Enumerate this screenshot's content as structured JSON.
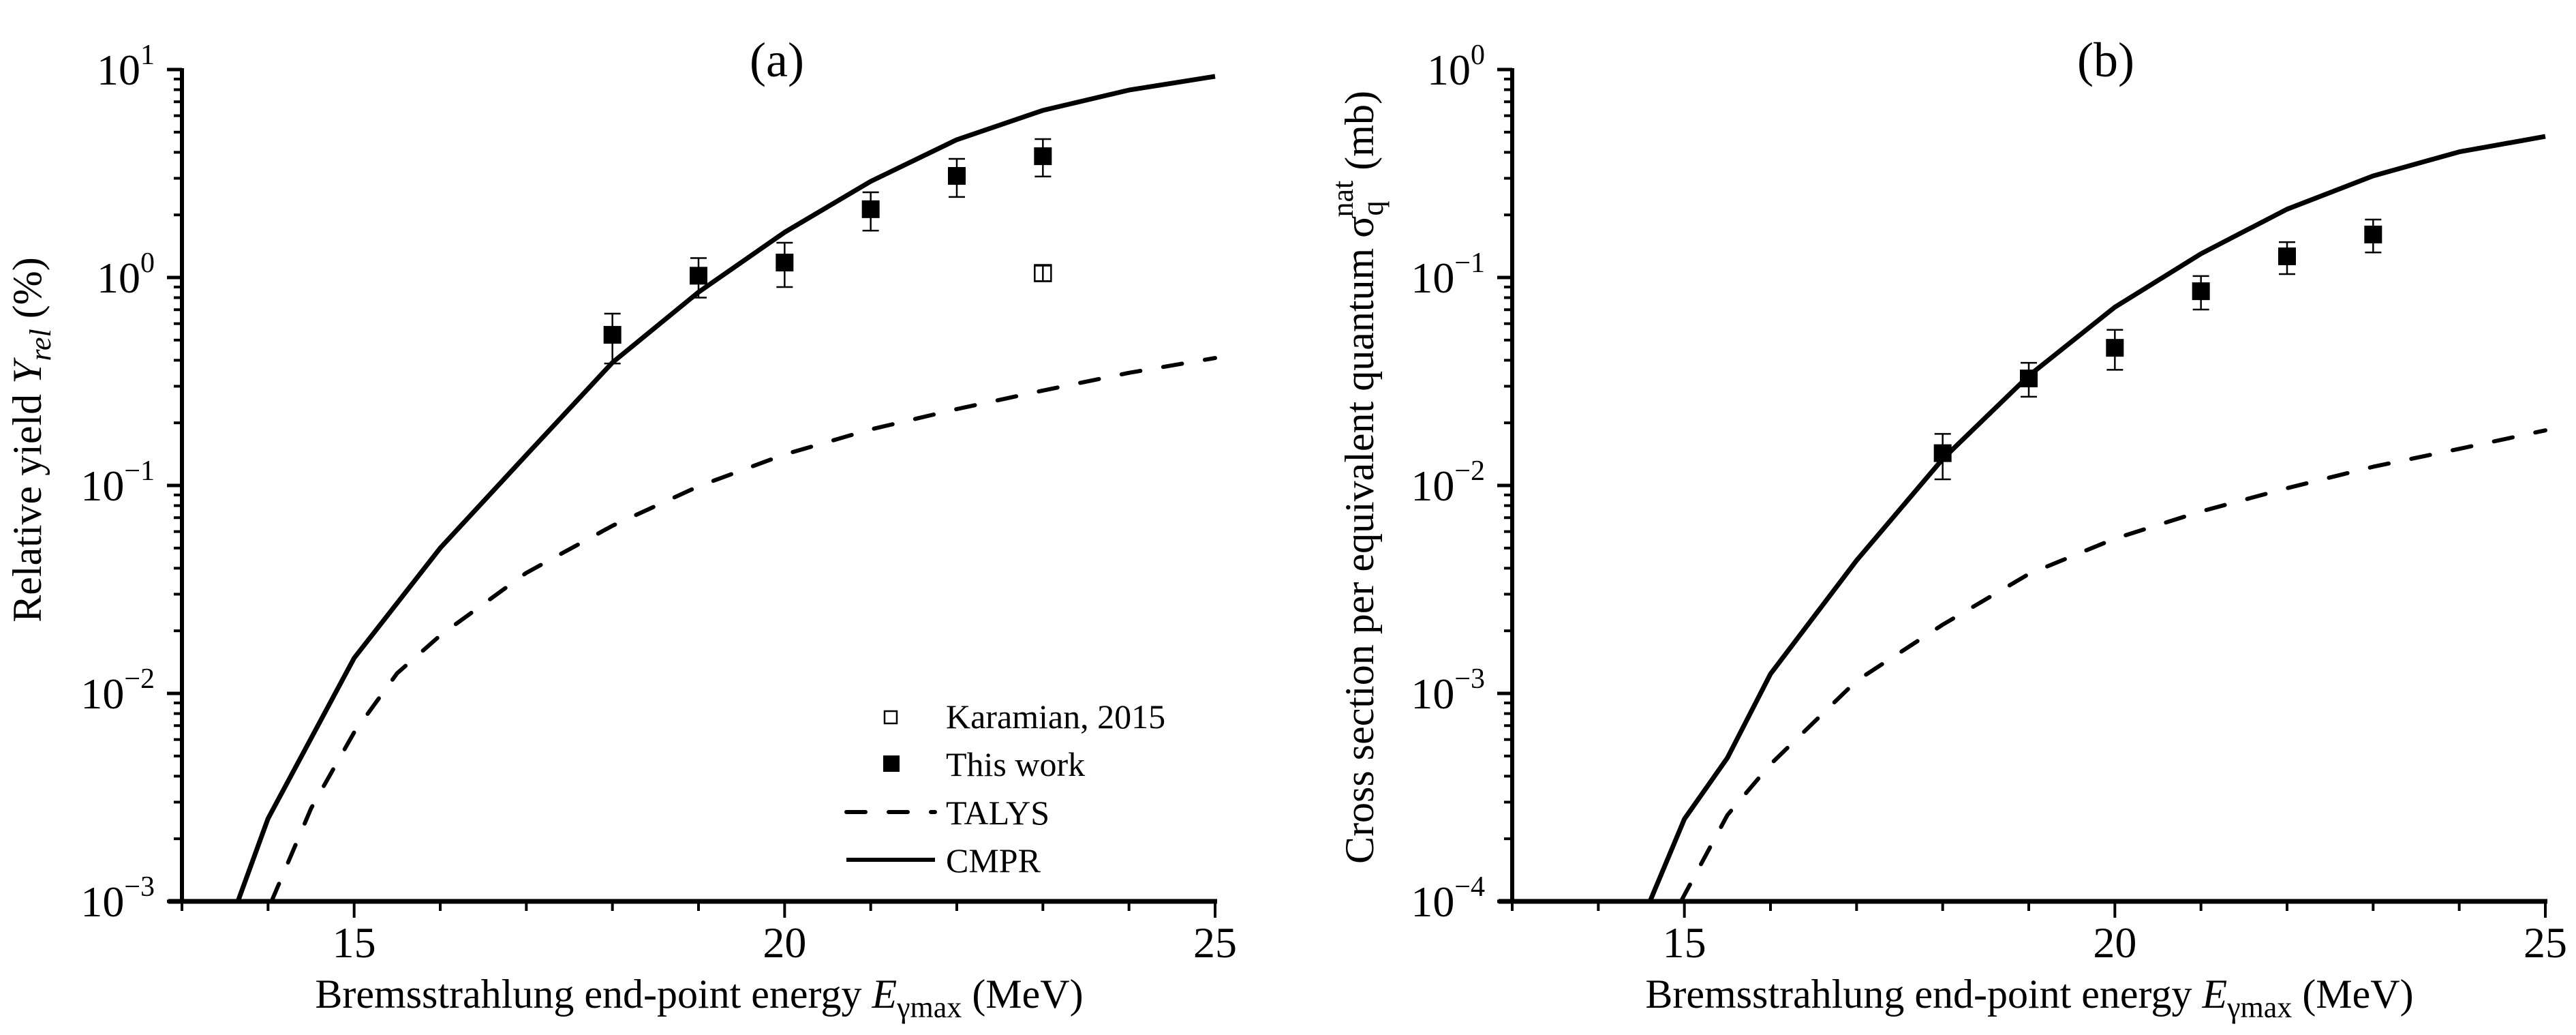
{
  "figure": {
    "background": "#ffffff",
    "ink": "#000000"
  },
  "chart_data": [
    {
      "type": "line",
      "panel_title": "(a)",
      "xlabel": "Bremsstrahlung end-point energy E_γmax (MeV)",
      "xlabel_parts": {
        "main": "Bremsstrahlung end-point energy ",
        "italic": "E",
        "sub": "γmax",
        "unit": " (MeV)"
      },
      "ylabel": "Relative yield Y_rel (%)",
      "ylabel_parts": {
        "main": "Relative yield ",
        "italic": "Y",
        "sub": "rel",
        "unit": " (%)"
      },
      "xlim": [
        13,
        25
      ],
      "x_major_ticks": [
        15,
        20,
        25
      ],
      "x_minor_step": 1,
      "yscale": "log",
      "ylim": [
        0.001,
        10
      ],
      "y_tick_exponents": [
        -3,
        -2,
        -1,
        0,
        1
      ],
      "grid": false,
      "legend": {
        "placement": "bottom-right",
        "entries": [
          {
            "label": "Karamian, 2015",
            "style": "open-square"
          },
          {
            "label": "This work",
            "style": "filled-square"
          },
          {
            "label": "TALYS",
            "style": "dashed-line"
          },
          {
            "label": "CMPR",
            "style": "solid-line"
          }
        ]
      },
      "series": [
        {
          "name": "CMPR",
          "style": "solid-line",
          "x": [
            13.65,
            14,
            15,
            16,
            17,
            18,
            19,
            20,
            21,
            22,
            23,
            24,
            25
          ],
          "y": [
            0.001,
            0.0025,
            0.0148,
            0.05,
            0.14,
            0.39,
            0.85,
            1.65,
            2.9,
            4.6,
            6.36,
            7.97,
            9.27
          ]
        },
        {
          "name": "TALYS",
          "style": "dashed-line",
          "x": [
            14.04,
            14.5,
            15,
            15.5,
            16,
            17,
            18,
            19,
            20,
            21,
            22,
            23,
            24,
            25
          ],
          "y": [
            0.001,
            0.0028,
            0.0065,
            0.0125,
            0.019,
            0.038,
            0.064,
            0.099,
            0.141,
            0.186,
            0.233,
            0.286,
            0.348,
            0.41
          ]
        },
        {
          "name": "This work",
          "style": "filled-square",
          "x": [
            18,
            19,
            20,
            21,
            22,
            23
          ],
          "y": [
            0.53,
            1.02,
            1.18,
            2.13,
            3.08,
            3.83
          ],
          "y_err_low": [
            0.386,
            0.8,
            0.9,
            1.68,
            2.44,
            3.06
          ],
          "y_err_high": [
            0.67,
            1.24,
            1.47,
            2.57,
            3.72,
            4.63
          ]
        },
        {
          "name": "Karamian, 2015",
          "style": "open-square",
          "x": [
            23
          ],
          "y": [
            1.05
          ],
          "y_err_low": [
            0.96
          ],
          "y_err_high": [
            1.14
          ]
        }
      ]
    },
    {
      "type": "line",
      "panel_title": "(b)",
      "xlabel": "Bremsstrahlung end-point energy E_γmax (MeV)",
      "xlabel_parts": {
        "main": "Bremsstrahlung end-point energy ",
        "italic": "E",
        "sub": "γmax",
        "unit": " (MeV)"
      },
      "ylabel": "Cross section per equivalent quantum σ_q^nat (mb)",
      "ylabel_parts": {
        "main": "Cross section per equivalent quantum ",
        "symbol": "σ",
        "sub": "q",
        "sup": "nat",
        "unit": " (mb)"
      },
      "xlim": [
        13,
        25
      ],
      "x_major_ticks": [
        15,
        20,
        25
      ],
      "x_minor_step": 1,
      "yscale": "log",
      "ylim": [
        0.0001,
        1
      ],
      "y_tick_exponents": [
        -4,
        -3,
        -2,
        -1,
        0
      ],
      "grid": false,
      "series": [
        {
          "name": "CMPR",
          "style": "solid-line",
          "x": [
            14.6,
            15,
            15.5,
            16,
            17,
            18,
            19,
            20,
            21,
            22,
            23,
            24,
            25
          ],
          "y": [
            0.0001,
            0.000249,
            0.00049,
            0.00124,
            0.00436,
            0.0134,
            0.0337,
            0.072,
            0.13,
            0.213,
            0.308,
            0.402,
            0.477
          ]
        },
        {
          "name": "TALYS",
          "style": "dashed-line",
          "x": [
            14.96,
            15.5,
            16,
            17,
            18,
            19,
            20,
            21,
            22,
            23,
            24,
            25
          ],
          "y": [
            0.0001,
            0.00026,
            0.000456,
            0.00115,
            0.00214,
            0.00375,
            0.00555,
            0.0075,
            0.0097,
            0.0123,
            0.015,
            0.0184
          ]
        },
        {
          "name": "This work",
          "style": "filled-square",
          "x": [
            18,
            19,
            20,
            21,
            22,
            23
          ],
          "y": [
            0.0143,
            0.0327,
            0.0459,
            0.0859,
            0.1264,
            0.161
          ],
          "y_err_low": [
            0.0107,
            0.0267,
            0.036,
            0.0701,
            0.1038,
            0.132
          ],
          "y_err_high": [
            0.0177,
            0.0389,
            0.056,
            0.1016,
            0.148,
            0.19
          ]
        }
      ]
    }
  ]
}
